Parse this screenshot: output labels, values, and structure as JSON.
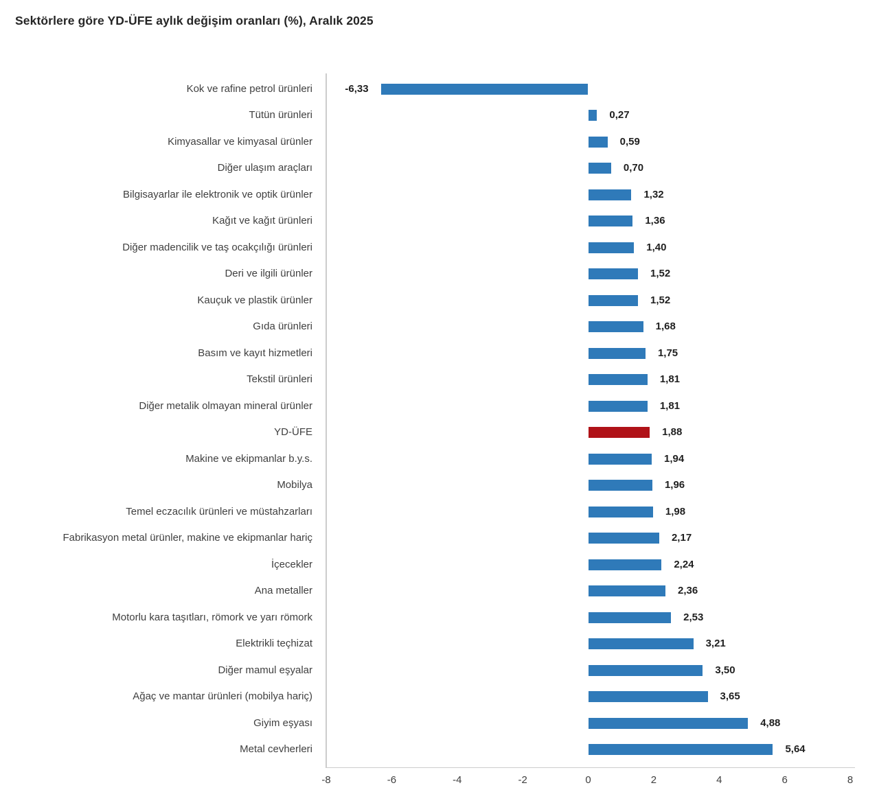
{
  "page": {
    "title": "Sektörlere göre YD-ÜFE aylık değişim oranları (%), Aralık 2025"
  },
  "chart_data": {
    "type": "bar",
    "orientation": "horizontal",
    "title": "Sektörlere göre YD-ÜFE aylık değişim oranları (%), Aralık 2025",
    "categories": [
      "Kok ve rafine petrol ürünleri",
      "Tütün ürünleri",
      "Kimyasallar ve kimyasal ürünler",
      "Diğer ulaşım araçları",
      "Bilgisayarlar ile elektronik ve optik ürünler",
      "Kağıt ve kağıt ürünleri",
      "Diğer madencilik ve taş ocakçılığı ürünleri",
      "Deri ve ilgili ürünler",
      "Kauçuk ve plastik ürünler",
      "Gıda ürünleri",
      "Basım ve kayıt hizmetleri",
      "Tekstil ürünleri",
      "Diğer metalik olmayan mineral ürünler",
      "YD-ÜFE",
      "Makine ve ekipmanlar b.y.s.",
      "Mobilya",
      "Temel eczacılık ürünleri ve müstahzarları",
      "Fabrikasyon metal ürünler, makine ve ekipmanlar hariç",
      "İçecekler",
      "Ana metaller",
      "Motorlu kara taşıtları, römork ve yarı römork",
      "Elektrikli teçhizat",
      "Diğer mamul eşyalar",
      "Ağaç ve mantar ürünleri (mobilya hariç)",
      "Giyim eşyası",
      "Metal cevherleri"
    ],
    "values": [
      -6.33,
      0.27,
      0.59,
      0.7,
      1.32,
      1.36,
      1.4,
      1.52,
      1.52,
      1.68,
      1.75,
      1.81,
      1.81,
      1.88,
      1.94,
      1.96,
      1.98,
      2.17,
      2.24,
      2.36,
      2.53,
      3.21,
      3.5,
      3.65,
      4.88,
      5.64
    ],
    "value_labels": [
      "-6,33",
      "0,27",
      "0,59",
      "0,70",
      "1,32",
      "1,36",
      "1,40",
      "1,52",
      "1,52",
      "1,68",
      "1,75",
      "1,81",
      "1,81",
      "1,88",
      "1,94",
      "1,96",
      "1,98",
      "2,17",
      "2,24",
      "2,36",
      "2,53",
      "3,21",
      "3,50",
      "3,65",
      "4,88",
      "5,64"
    ],
    "highlight_category": "YD-ÜFE",
    "highlight_index": 13,
    "xlim": [
      -8,
      8
    ],
    "x_ticks": [
      -8,
      -6,
      -4,
      -2,
      0,
      2,
      4,
      6,
      8
    ],
    "x_tick_labels": [
      "-8",
      "-6",
      "-4",
      "-2",
      "0",
      "2",
      "4",
      "6",
      "8"
    ],
    "xlabel": "",
    "ylabel": "",
    "grid": false,
    "legend": "none",
    "bar_color": "#2f7ab9",
    "highlight_color": "#b01218",
    "axis_line_color": "#cccccc"
  }
}
